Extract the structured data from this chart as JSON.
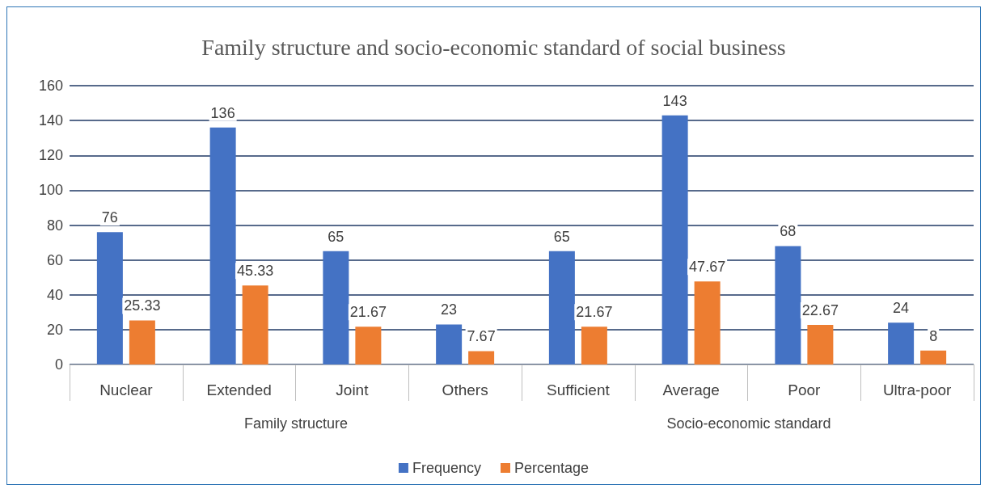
{
  "chart_data": {
    "type": "bar",
    "title": "Family structure and socio-economic standard of social business",
    "categories": [
      "Nuclear",
      "Extended",
      "Joint",
      "Others",
      "Sufficient",
      "Average",
      "Poor",
      "Ultra-poor"
    ],
    "series": [
      {
        "name": "Frequency",
        "color": "#4472c4",
        "values": [
          76,
          136,
          65,
          23,
          65,
          143,
          68,
          24
        ]
      },
      {
        "name": "Percentage",
        "color": "#ed7d31",
        "values": [
          25.33,
          45.33,
          21.67,
          7.67,
          21.67,
          47.67,
          22.67,
          8
        ]
      }
    ],
    "annotations": [
      "Family structure",
      "Socio-economic standard"
    ],
    "ylim": [
      0,
      160
    ],
    "yticks": [
      0,
      20,
      40,
      60,
      80,
      100,
      120,
      140,
      160
    ],
    "grid": "y",
    "legend": "bottom",
    "data_labels": true
  }
}
